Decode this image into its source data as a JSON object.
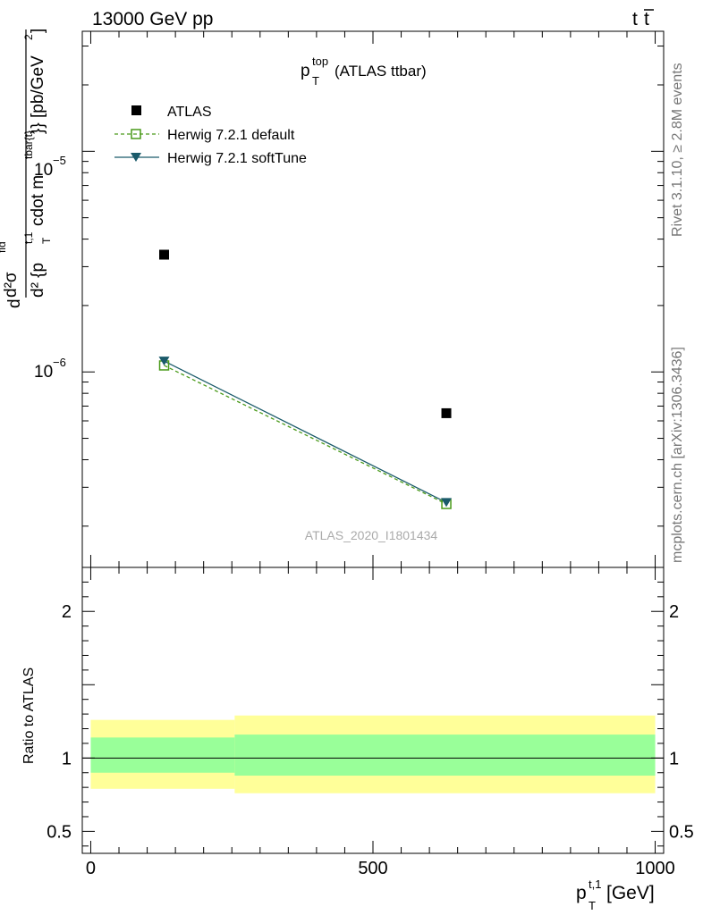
{
  "header": {
    "energy_label": "13000 GeV pp",
    "process_main": "t",
    "process_bar": "t"
  },
  "side_labels": {
    "rivet": "Rivet 3.1.10, ≥ 2.8M events",
    "mcplots": "mcplots.cern.ch [arXiv:1306.3436]"
  },
  "colors": {
    "atlas": "#000000",
    "herwig_default": "#4a9a1a",
    "herwig_softtune": "#1a5a6a",
    "band_outer": "#ffff99",
    "band_inner": "#99ff99"
  },
  "chart_data": [
    {
      "type": "scatter",
      "panel": "main",
      "title_main": "p",
      "title_sup": "top",
      "title_sub": "T",
      "title_rest": " (ATLAS ttbar)",
      "analysis_id": "ATLAS_2020_I1801434",
      "ylabel": {
        "part1": "d",
        "part2": "d²σ",
        "part2_sup": "fid",
        "part3": "d² {p",
        "part3_sup": "t,1",
        "part3_sub": "T",
        "part4": " cdot m",
        "part4_sup": "tbar{t}",
        "part5": "}} [pb/GeV",
        "part5_sup": "2",
        "part6": "]"
      },
      "xlim": [
        -15,
        1015
      ],
      "ylim_log": [
        1.3e-07,
        3.5e-05
      ],
      "y_tick_labels": [
        {
          "base": "10",
          "exp": "−5",
          "value": 1e-05
        },
        {
          "base": "10",
          "exp": "−6",
          "value": 1e-06
        }
      ],
      "legend": [
        {
          "label": "ATLAS"
        },
        {
          "label": "Herwig 7.2.1 default"
        },
        {
          "label": "Herwig 7.2.1 softTune"
        }
      ],
      "series": [
        {
          "name": "ATLAS",
          "x": [
            130,
            630
          ],
          "y": [
            3.4e-06,
            6.5e-07
          ]
        },
        {
          "name": "Herwig 7.2.1 default",
          "x": [
            130,
            630
          ],
          "y": [
            1.07e-06,
            2.52e-07
          ]
        },
        {
          "name": "Herwig 7.2.1 softTune",
          "x": [
            130,
            630
          ],
          "y": [
            1.12e-06,
            2.56e-07
          ]
        }
      ]
    },
    {
      "type": "area",
      "panel": "ratio",
      "ylabel": "Ratio to ATLAS",
      "xlabel": {
        "main": "p",
        "sup": "t,1",
        "sub": "T",
        "rest": " [GeV]"
      },
      "xlim": [
        -15,
        1015
      ],
      "ylim": [
        0.35,
        2.3
      ],
      "x_tick_labels": [
        "0",
        "500",
        "1000"
      ],
      "y_tick_labels": [
        "2",
        "1",
        "0.5"
      ],
      "y_tick_values": [
        2,
        1,
        0.5
      ],
      "x_tick_values": [
        0,
        500,
        1000
      ],
      "bins": [
        {
          "xlow": 0,
          "xhigh": 255,
          "outer": [
            0.79,
            1.26
          ],
          "inner": [
            0.9,
            1.14
          ]
        },
        {
          "xlow": 255,
          "xhigh": 1000,
          "outer": [
            0.76,
            1.29
          ],
          "inner": [
            0.88,
            1.16
          ]
        }
      ],
      "reference": 1
    }
  ]
}
